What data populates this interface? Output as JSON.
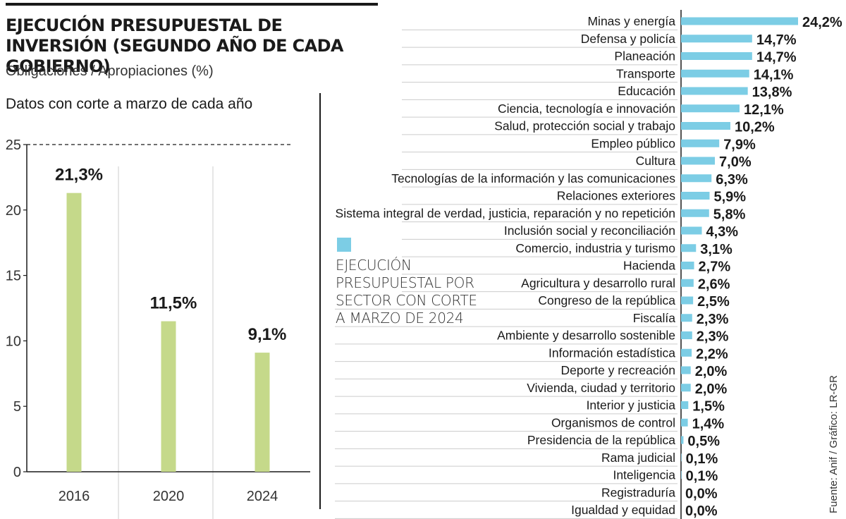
{
  "colors": {
    "green_bar": "#c5d98a",
    "blue_bar": "#7ccde5",
    "text": "#1a1a1a",
    "grid": "#cccccc"
  },
  "header": {
    "title": "EJECUCIÓN PRESUPUESTAL DE INVERSIÓN (SEGUNDO AÑO DE CADA GOBIERNO)",
    "subtitle": "Obligaciones / Apropiaciones (%)",
    "cutoff_note": "Datos con corte a marzo de cada año"
  },
  "legend": {
    "label": "EJECUCIÓN PRESUPUESTAL POR SECTOR CON CORTE A MARZO DE 2024"
  },
  "source": "Fuente: Anif / Gráfico: LR-GR",
  "chart_data": [
    {
      "type": "bar",
      "title": "EJECUCIÓN PRESUPUESTAL DE INVERSIÓN (SEGUNDO AÑO DE CADA GOBIERNO)",
      "ylabel": "Obligaciones / Apropiaciones (%)",
      "categories": [
        "2016",
        "2020",
        "2024"
      ],
      "values": [
        21.3,
        11.5,
        9.1
      ],
      "labels": [
        "21,3%",
        "11,5%",
        "9,1%"
      ],
      "ylim": [
        0,
        25
      ],
      "yticks": [
        0,
        5,
        10,
        15,
        20,
        25
      ],
      "ytick_labels": [
        "0",
        "5",
        "10",
        "15",
        "20",
        "25"
      ]
    },
    {
      "type": "bar",
      "orientation": "horizontal",
      "title": "EJECUCIÓN PRESUPUESTAL POR SECTOR CON CORTE A MARZO DE 2024",
      "categories": [
        "Minas y energía",
        "Defensa y policía",
        "Planeación",
        "Transporte",
        "Educación",
        "Ciencia, tecnología e innovación",
        "Salud, protección social y trabajo",
        "Empleo público",
        "Cultura",
        "Tecnologías de la información y las comunicaciones",
        "Relaciones exteriores",
        "Sistema integral de verdad, justicia, reparación y no repetición",
        "Inclusión social y reconciliación",
        "Comercio, industria y turismo",
        "Hacienda",
        "Agricultura y desarrollo rural",
        "Congreso de la república",
        "Fiscalía",
        "Ambiente y desarrollo sostenible",
        "Información estadística",
        "Deporte y recreación",
        "Vivienda, ciudad y territorio",
        "Interior y justicia",
        "Organismos de control",
        "Presidencia de la república",
        "Rama judicial",
        "Inteligencia",
        "Registraduría",
        "Igualdad y equidad"
      ],
      "values": [
        24.2,
        14.7,
        14.7,
        14.1,
        13.8,
        12.1,
        10.2,
        7.9,
        7.0,
        6.3,
        5.9,
        5.8,
        4.3,
        3.1,
        2.7,
        2.6,
        2.5,
        2.3,
        2.3,
        2.2,
        2.0,
        2.0,
        1.5,
        1.4,
        0.5,
        0.1,
        0.1,
        0.0,
        0.0
      ],
      "labels": [
        "24,2%",
        "14,7%",
        "14,7%",
        "14,1%",
        "13,8%",
        "12,1%",
        "10,2%",
        "7,9%",
        "7,0%",
        "6,3%",
        "5,9%",
        "5,8%",
        "4,3%",
        "3,1%",
        "2,7%",
        "2,6%",
        "2,5%",
        "2,3%",
        "2,3%",
        "2,2%",
        "2,0%",
        "2,0%",
        "1,5%",
        "1,4%",
        "0,5%",
        "0,1%",
        "0,1%",
        "0,0%",
        "0,0%"
      ]
    }
  ]
}
